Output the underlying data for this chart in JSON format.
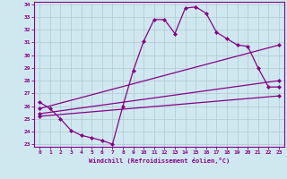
{
  "xlabel": "Windchill (Refroidissement éolien,°C)",
  "ylabel": "",
  "background_color": "#cfe8f0",
  "grid_color": "#b0c8d0",
  "line_color": "#880088",
  "xlim": [
    -0.5,
    23.5
  ],
  "ylim": [
    22.8,
    34.2
  ],
  "yticks": [
    23,
    24,
    25,
    26,
    27,
    28,
    29,
    30,
    31,
    32,
    33,
    34
  ],
  "xticks": [
    0,
    1,
    2,
    3,
    4,
    5,
    6,
    7,
    8,
    9,
    10,
    11,
    12,
    13,
    14,
    15,
    16,
    17,
    18,
    19,
    20,
    21,
    22,
    23
  ],
  "series1_x": [
    0,
    1,
    2,
    3,
    4,
    5,
    6,
    7,
    8,
    9,
    10,
    11,
    12,
    13,
    14,
    15,
    16,
    17,
    18,
    19,
    20,
    21,
    22,
    23
  ],
  "series1_y": [
    26.3,
    25.8,
    25.0,
    24.1,
    23.7,
    23.5,
    23.3,
    23.0,
    26.0,
    28.8,
    31.1,
    32.8,
    32.8,
    31.7,
    33.7,
    33.8,
    33.3,
    31.8,
    31.3,
    30.8,
    30.7,
    29.0,
    27.5,
    27.5
  ],
  "series2_x": [
    0,
    23
  ],
  "series2_y": [
    25.8,
    30.8
  ],
  "series3_x": [
    0,
    23
  ],
  "series3_y": [
    25.4,
    28.0
  ],
  "series4_x": [
    0,
    23
  ],
  "series4_y": [
    25.2,
    26.8
  ]
}
